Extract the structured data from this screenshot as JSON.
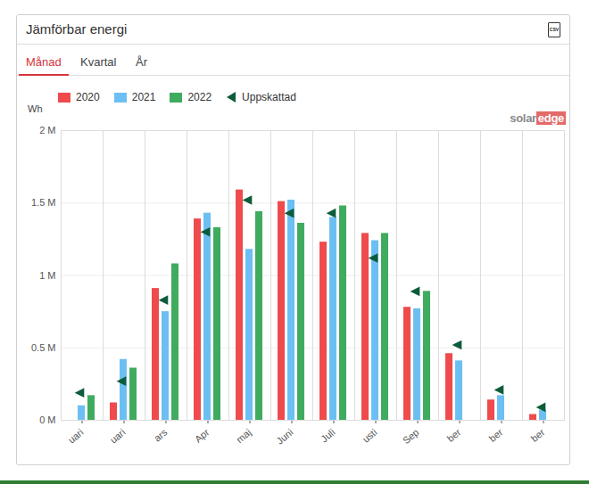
{
  "chart_data": {
    "type": "bar",
    "title": "Jämförbar energi",
    "export_icon": "CSV",
    "tabs": [
      "Månad",
      "Kvartal",
      "År"
    ],
    "brand": [
      "solar",
      "edge"
    ],
    "y_label": "Wh",
    "categories": [
      "uari",
      "uari",
      "ars",
      "Apr",
      "maj",
      "Juni",
      "Juli",
      "usti",
      "Sep",
      "ber",
      "ber",
      "ber"
    ],
    "series": [
      {
        "name": "2020",
        "color": "#ef4a4c",
        "values": [
          null,
          120000,
          910000,
          1390000,
          1590000,
          1510000,
          1230000,
          1290000,
          780000,
          460000,
          140000,
          40000
        ]
      },
      {
        "name": "2021",
        "color": "#6cbff2",
        "values": [
          100000,
          420000,
          750000,
          1430000,
          1180000,
          1520000,
          1400000,
          1240000,
          770000,
          410000,
          170000,
          70000
        ]
      },
      {
        "name": "2022",
        "color": "#3fab5e",
        "values": [
          170000,
          360000,
          1080000,
          1330000,
          1440000,
          1360000,
          1480000,
          1290000,
          890000,
          null,
          null,
          null
        ]
      },
      {
        "name": "Uppskattad",
        "type": "scatter",
        "marker": "triangle-left",
        "color": "#0c5c3a",
        "values": [
          190000,
          270000,
          830000,
          1300000,
          1520000,
          1430000,
          1430000,
          1120000,
          890000,
          520000,
          210000,
          90000
        ]
      }
    ],
    "ylim": [
      0,
      2000000
    ],
    "yticks": [
      {
        "value": 0,
        "label": "0 M"
      },
      {
        "value": 500000,
        "label": "0.5 M"
      },
      {
        "value": 1000000,
        "label": "1 M"
      },
      {
        "value": 1500000,
        "label": "1.5 M"
      },
      {
        "value": 2000000,
        "label": "2 M"
      }
    ],
    "grid": true,
    "legend": "top"
  }
}
